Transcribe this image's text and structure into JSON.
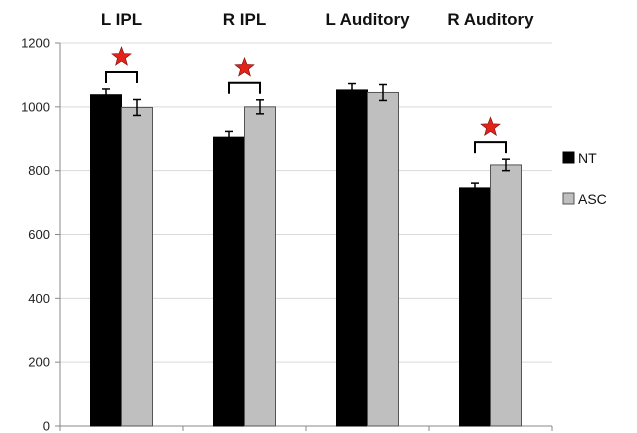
{
  "chart_data": {
    "type": "bar",
    "title": "",
    "xlabel": "",
    "ylabel": "",
    "categories": [
      "L IPL",
      "R IPL",
      "L Auditory",
      "R Auditory"
    ],
    "category_label_position": "top",
    "series": [
      {
        "name": "NT",
        "color": "#000000",
        "values": [
          1038,
          905,
          1053,
          746
        ],
        "errors": [
          18,
          18,
          20,
          15
        ]
      },
      {
        "name": "ASC",
        "color": "#bfbfbf",
        "values": [
          998,
          1000,
          1045,
          818
        ],
        "errors": [
          25,
          22,
          25,
          18
        ]
      }
    ],
    "ylim": [
      0,
      1200
    ],
    "yticks": [
      0,
      200,
      400,
      600,
      800,
      1000,
      1200
    ],
    "grid": true,
    "legend_position": "right",
    "significance_markers": [
      {
        "category": "L IPL",
        "symbol": "star",
        "color": "#e2231a"
      },
      {
        "category": "R IPL",
        "symbol": "star",
        "color": "#e2231a"
      },
      {
        "category": "R Auditory",
        "symbol": "star",
        "color": "#e2231a"
      }
    ]
  }
}
